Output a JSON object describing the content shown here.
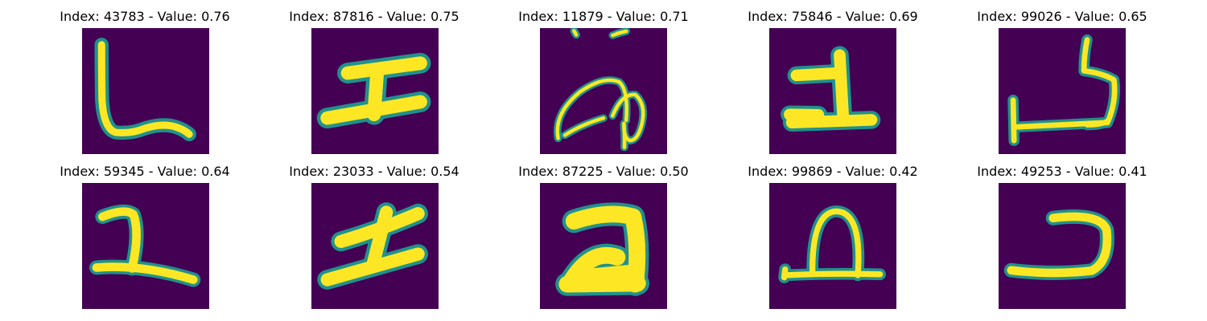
{
  "figure": {
    "background": "#ffffff",
    "image_background_color": "#440154",
    "stroke_color_center": "#fde725",
    "stroke_color_edge": "#21918c",
    "colormap": "viridis",
    "panels": [
      {
        "title": "Index: 43783 - Value: 0.76",
        "glyph": "L-shape stroke"
      },
      {
        "title": "Index: 87816 - Value: 0.75",
        "glyph": "I-beam stroke"
      },
      {
        "title": "Index: 11879 - Value: 0.71",
        "glyph": "looped scribble with dots"
      },
      {
        "title": "Index: 75846 - Value: 0.69",
        "glyph": "numeral one on a base line"
      },
      {
        "title": "Index: 99026 - Value: 0.65",
        "glyph": "hook stroke on a base line"
      },
      {
        "title": "Index: 59345 - Value: 0.64",
        "glyph": "hook stroke on a base line"
      },
      {
        "title": "Index: 23033 - Value: 0.54",
        "glyph": "slanted I-beam stroke"
      },
      {
        "title": "Index: 87225 - Value: 0.50",
        "glyph": "thick reversed-two stroke"
      },
      {
        "title": "Index: 99869 - Value: 0.42",
        "glyph": "arch on a base line"
      },
      {
        "title": "Index: 49253 - Value: 0.41",
        "glyph": "reversed-c curve stroke"
      }
    ]
  }
}
